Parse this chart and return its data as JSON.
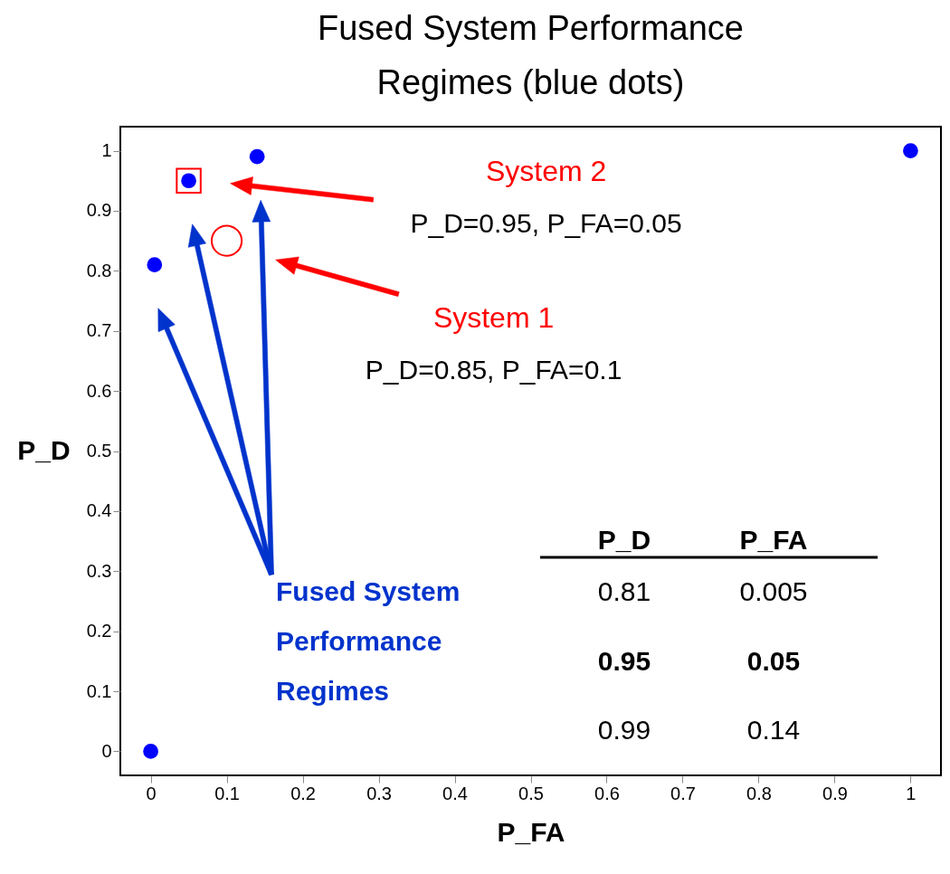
{
  "chart_data": {
    "type": "scatter",
    "title": "Fused System Performance Regimes (blue dots)",
    "xlabel": "P_FA",
    "ylabel": "P_D",
    "xlim": [
      -0.04,
      1.04
    ],
    "ylim": [
      -0.04,
      1.04
    ],
    "xticks": [
      0,
      0.1,
      0.2,
      0.3,
      0.4,
      0.5,
      0.6,
      0.7,
      0.8,
      0.9,
      1
    ],
    "yticks": [
      0,
      0.1,
      0.2,
      0.3,
      0.4,
      0.5,
      0.6,
      0.7,
      0.8,
      0.9,
      1
    ],
    "grid": false,
    "series": [
      {
        "color": "#0000ff",
        "marker": "circle",
        "x": [
          0,
          0.005,
          0.05,
          0.14,
          1
        ],
        "values": [
          0,
          0.81,
          0.95,
          0.99,
          1
        ]
      },
      {
        "name": "System 1",
        "color": "#ff0000",
        "marker": "circle",
        "x": [
          0.1
        ],
        "values": [
          0.85
        ]
      },
      {
        "name": "System 2",
        "color": "#ff0000",
        "marker": "square",
        "x": [
          0.05
        ],
        "values": [
          0.95
        ]
      }
    ],
    "annotations": [
      "P_D=0.95, P_FA=0.05",
      "P_D=0.85, P_FA=0.1",
      "Fused System Performance Regimes",
      "P_D",
      "P_FA",
      "0.81",
      "0.005",
      "0.95",
      "0.05",
      "0.99",
      "0.14"
    ]
  }
}
